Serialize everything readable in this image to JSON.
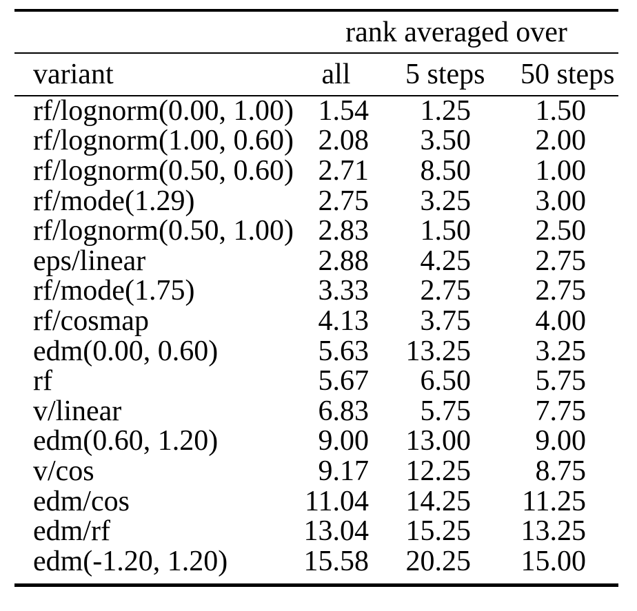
{
  "table": {
    "span_header": "rank averaged over",
    "columns": [
      "variant",
      "all",
      "5 steps",
      "50 steps"
    ],
    "rows": [
      [
        "rf/lognorm(0.00, 1.00)",
        "1.54",
        "1.25",
        "1.50"
      ],
      [
        "rf/lognorm(1.00, 0.60)",
        "2.08",
        "3.50",
        "2.00"
      ],
      [
        "rf/lognorm(0.50, 0.60)",
        "2.71",
        "8.50",
        "1.00"
      ],
      [
        "rf/mode(1.29)",
        "2.75",
        "3.25",
        "3.00"
      ],
      [
        "rf/lognorm(0.50, 1.00)",
        "2.83",
        "1.50",
        "2.50"
      ],
      [
        "eps/linear",
        "2.88",
        "4.25",
        "2.75"
      ],
      [
        "rf/mode(1.75)",
        "3.33",
        "2.75",
        "2.75"
      ],
      [
        "rf/cosmap",
        "4.13",
        "3.75",
        "4.00"
      ],
      [
        "edm(0.00, 0.60)",
        "5.63",
        "13.25",
        "3.25"
      ],
      [
        "rf",
        "5.67",
        "6.50",
        "5.75"
      ],
      [
        "v/linear",
        "6.83",
        "5.75",
        "7.75"
      ],
      [
        "edm(0.60, 1.20)",
        "9.00",
        "13.00",
        "9.00"
      ],
      [
        "v/cos",
        "9.17",
        "12.25",
        "8.75"
      ],
      [
        "edm/cos",
        "11.04",
        "14.25",
        "11.25"
      ],
      [
        "edm/rf",
        "13.04",
        "15.25",
        "13.25"
      ],
      [
        "edm(-1.20, 1.20)",
        "15.58",
        "20.25",
        "15.00"
      ]
    ],
    "colors": {
      "background": "#ffffff",
      "text": "#000000",
      "rules": "#000000"
    }
  }
}
